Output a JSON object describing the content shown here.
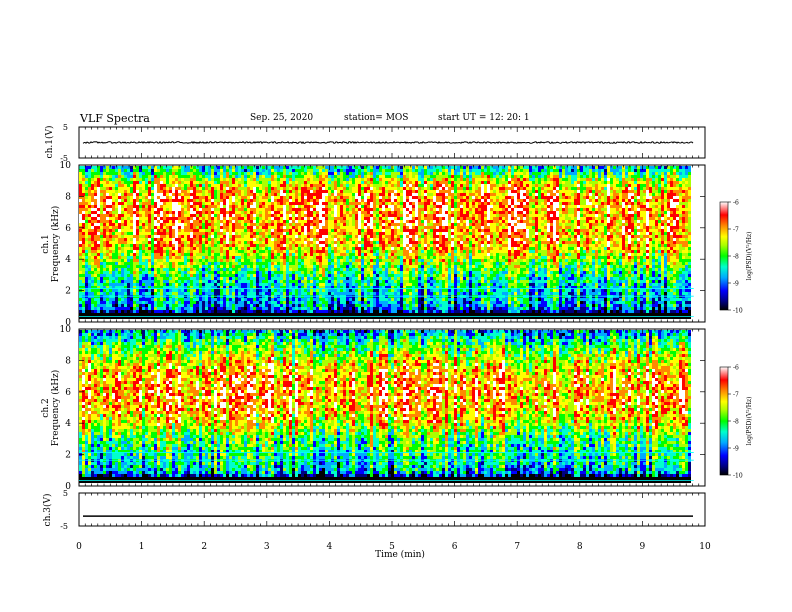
{
  "header": {
    "title": "VLF Spectra",
    "date": "Sep. 25, 2020",
    "station": "station= MOS",
    "start": "start  UT =   12: 20: 1"
  },
  "chart_data": [
    {
      "type": "line",
      "panel": "ch1-waveform",
      "ylabel": "ch.1(V)",
      "ylim": [
        -5,
        5
      ],
      "yticks": [
        "5",
        "-5"
      ],
      "description_values": {
        "trace_level": 0
      }
    },
    {
      "type": "heatmap",
      "panel": "ch1-spectrogram",
      "ylabel": "Frequency  (kHz)",
      "channel_label": "ch.1",
      "ylim": [
        0,
        10
      ],
      "yticks": [
        "0",
        "2",
        "4",
        "6",
        "8",
        "10"
      ],
      "xlim": [
        0,
        10
      ],
      "colorbar": {
        "label": "log(PSD)(V²/Hz)",
        "ticks": [
          "-6",
          "-7",
          "-8",
          "-9",
          "-10"
        ],
        "range": [
          -10,
          -6
        ]
      },
      "profile_khz_vs_log_psd": [
        [
          0.5,
          -9.2
        ],
        [
          1,
          -8.8
        ],
        [
          2,
          -8.6
        ],
        [
          3,
          -8.2
        ],
        [
          4,
          -7.6
        ],
        [
          5,
          -7.0
        ],
        [
          6,
          -6.9
        ],
        [
          7,
          -6.8
        ],
        [
          8,
          -6.8
        ],
        [
          9,
          -7.4
        ],
        [
          9.8,
          -8.5
        ]
      ]
    },
    {
      "type": "heatmap",
      "panel": "ch2-spectrogram",
      "ylabel": "Frequency  (kHz)",
      "channel_label": "ch.2",
      "ylim": [
        0,
        10
      ],
      "yticks": [
        "0",
        "2",
        "4",
        "6",
        "8",
        "10"
      ],
      "xlim": [
        0,
        10
      ],
      "colorbar": {
        "label": "log(PSD)(V²/Hz)",
        "ticks": [
          "-6",
          "-7",
          "-8",
          "-9",
          "-10"
        ],
        "range": [
          -10,
          -6
        ]
      },
      "profile_khz_vs_log_psd": [
        [
          0.5,
          -9.0
        ],
        [
          1,
          -8.6
        ],
        [
          2,
          -8.3
        ],
        [
          3,
          -8.0
        ],
        [
          4,
          -7.3
        ],
        [
          5,
          -6.9
        ],
        [
          6,
          -6.8
        ],
        [
          7,
          -6.9
        ],
        [
          8,
          -7.4
        ],
        [
          9,
          -8.0
        ],
        [
          9.8,
          -8.8
        ]
      ]
    },
    {
      "type": "line",
      "panel": "ch3-waveform",
      "ylabel": "ch.3(V)",
      "ylim": [
        -5,
        5
      ],
      "yticks": [
        "5",
        "-5"
      ],
      "description_values": {
        "trace_level": -2
      }
    }
  ],
  "xaxis": {
    "label": "Time  (min)",
    "ticks": [
      "0",
      "1",
      "2",
      "3",
      "4",
      "5",
      "6",
      "7",
      "8",
      "9",
      "10"
    ],
    "range": [
      0,
      10
    ],
    "data_end": 9.82
  },
  "colors": {
    "scale": [
      "#000000",
      "#000080",
      "#0000ff",
      "#00aaff",
      "#00ffcc",
      "#00ff00",
      "#aaff00",
      "#ffff00",
      "#ff8800",
      "#ff0000",
      "#ffffff"
    ]
  }
}
